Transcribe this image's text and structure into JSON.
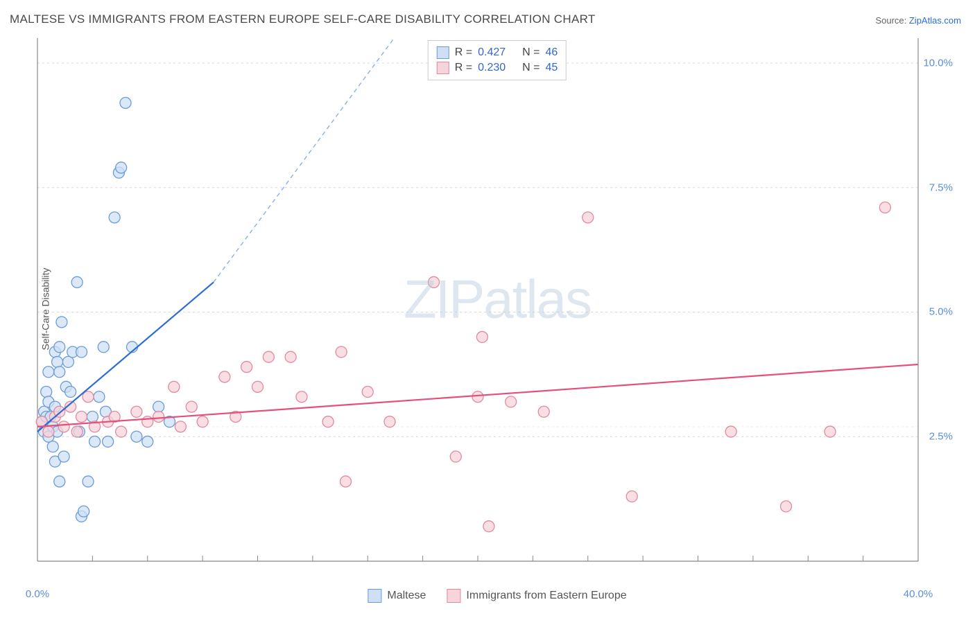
{
  "title": "MALTESE VS IMMIGRANTS FROM EASTERN EUROPE SELF-CARE DISABILITY CORRELATION CHART",
  "source_label": "Source: ",
  "source_name": "ZipAtlas.com",
  "ylabel": "Self-Care Disability",
  "watermark_a": "ZIP",
  "watermark_b": "atlas",
  "chart": {
    "type": "scatter",
    "xlim": [
      0,
      40
    ],
    "ylim": [
      0,
      10.5
    ],
    "xticks": [
      0,
      2.5,
      5,
      7.5,
      10,
      12.5,
      15,
      17.5,
      20,
      22.5,
      25,
      27.5,
      30,
      32.5,
      35,
      37.5,
      40
    ],
    "xtick_labels": {
      "0": "0.0%",
      "40": "40.0%"
    },
    "yticks": [
      2.5,
      5.0,
      7.5,
      10.0
    ],
    "ytick_labels": [
      "2.5%",
      "5.0%",
      "7.5%",
      "10.0%"
    ],
    "grid_color": "#d8d8d8",
    "axis_color": "#888888",
    "background_color": "#ffffff",
    "marker_radius": 8,
    "marker_stroke_width": 1.3,
    "trend_line_width": 2.2,
    "trend_dash": "6,5",
    "series": [
      {
        "name": "Maltese",
        "fill": "#cfe0f5",
        "stroke": "#6a9bd8",
        "line_color": "#2b6cd4",
        "R": "0.427",
        "N": "46",
        "trend": {
          "x1": 0,
          "y1": 2.6,
          "x2": 8,
          "y2": 5.6,
          "x2_dash": 16.2,
          "y2_dash": 10.5
        },
        "points": [
          [
            0.2,
            2.8
          ],
          [
            0.3,
            3.0
          ],
          [
            0.3,
            2.6
          ],
          [
            0.4,
            2.9
          ],
          [
            0.4,
            3.4
          ],
          [
            0.5,
            2.5
          ],
          [
            0.5,
            3.2
          ],
          [
            0.5,
            3.8
          ],
          [
            0.6,
            2.9
          ],
          [
            0.7,
            2.3
          ],
          [
            0.7,
            2.7
          ],
          [
            0.8,
            3.1
          ],
          [
            0.8,
            4.2
          ],
          [
            0.8,
            2.0
          ],
          [
            0.9,
            4.0
          ],
          [
            0.9,
            2.6
          ],
          [
            1.0,
            3.8
          ],
          [
            1.0,
            4.3
          ],
          [
            1.0,
            1.6
          ],
          [
            1.1,
            4.8
          ],
          [
            1.2,
            2.1
          ],
          [
            1.3,
            3.5
          ],
          [
            1.4,
            4.0
          ],
          [
            1.5,
            3.4
          ],
          [
            1.6,
            4.2
          ],
          [
            1.8,
            5.6
          ],
          [
            1.9,
            2.6
          ],
          [
            2.0,
            0.9
          ],
          [
            2.0,
            4.2
          ],
          [
            2.1,
            1.0
          ],
          [
            2.3,
            1.6
          ],
          [
            2.5,
            2.9
          ],
          [
            2.6,
            2.4
          ],
          [
            2.8,
            3.3
          ],
          [
            3.0,
            4.3
          ],
          [
            3.1,
            3.0
          ],
          [
            3.2,
            2.4
          ],
          [
            3.5,
            6.9
          ],
          [
            3.7,
            7.8
          ],
          [
            3.8,
            7.9
          ],
          [
            4.0,
            9.2
          ],
          [
            4.3,
            4.3
          ],
          [
            4.5,
            2.5
          ],
          [
            5.0,
            2.4
          ],
          [
            5.5,
            3.1
          ],
          [
            6.0,
            2.8
          ]
        ]
      },
      {
        "name": "Immigrants from Eastern Europe",
        "fill": "#f7d3db",
        "stroke": "#e08aa0",
        "line_color": "#e54f7a",
        "R": "0.230",
        "N": "45",
        "trend": {
          "x1": 0,
          "y1": 2.7,
          "x2": 40,
          "y2": 3.95
        },
        "points": [
          [
            0.2,
            2.8
          ],
          [
            0.5,
            2.6
          ],
          [
            0.8,
            2.9
          ],
          [
            1.0,
            3.0
          ],
          [
            1.2,
            2.7
          ],
          [
            1.5,
            3.1
          ],
          [
            1.8,
            2.6
          ],
          [
            2.0,
            2.9
          ],
          [
            2.3,
            3.3
          ],
          [
            2.6,
            2.7
          ],
          [
            3.2,
            2.8
          ],
          [
            3.5,
            2.9
          ],
          [
            3.8,
            2.6
          ],
          [
            4.5,
            3.0
          ],
          [
            5.0,
            2.8
          ],
          [
            5.5,
            2.9
          ],
          [
            6.2,
            3.5
          ],
          [
            6.5,
            2.7
          ],
          [
            7.0,
            3.1
          ],
          [
            7.5,
            2.8
          ],
          [
            8.5,
            3.7
          ],
          [
            9.0,
            2.9
          ],
          [
            9.5,
            3.9
          ],
          [
            10.0,
            3.5
          ],
          [
            10.5,
            4.1
          ],
          [
            11.5,
            4.1
          ],
          [
            12.0,
            3.3
          ],
          [
            13.2,
            2.8
          ],
          [
            13.8,
            4.2
          ],
          [
            14.0,
            1.6
          ],
          [
            15.0,
            3.4
          ],
          [
            16.0,
            2.8
          ],
          [
            18.0,
            5.6
          ],
          [
            19.0,
            2.1
          ],
          [
            20.0,
            3.3
          ],
          [
            20.2,
            4.5
          ],
          [
            20.5,
            0.7
          ],
          [
            21.5,
            3.2
          ],
          [
            23.0,
            3.0
          ],
          [
            25.0,
            6.9
          ],
          [
            27.0,
            1.3
          ],
          [
            31.5,
            2.6
          ],
          [
            34.0,
            1.1
          ],
          [
            36.0,
            2.6
          ],
          [
            38.5,
            7.1
          ]
        ]
      }
    ]
  },
  "stats_legend": {
    "r_label": "R =",
    "n_label": "N ="
  },
  "bottom_legend_labels": [
    "Maltese",
    "Immigrants from Eastern Europe"
  ]
}
